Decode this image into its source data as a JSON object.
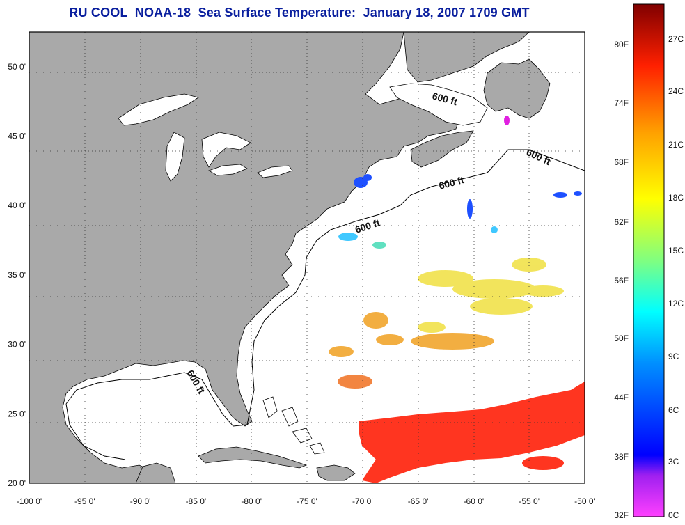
{
  "title": "RU COOL  NOAA-18  Sea Surface Temperature:  January 18, 2007 1709 GMT",
  "map": {
    "lon_range": [
      -100,
      -50
    ],
    "lat_range": [
      20,
      52.5
    ],
    "lon_ticks": [
      -100,
      -95,
      -90,
      -85,
      -80,
      -75,
      -70,
      -65,
      -60,
      -55,
      -50
    ],
    "lat_ticks": [
      20,
      25,
      30,
      35,
      40,
      45,
      50
    ],
    "lon_tick_labels": [
      "-100 0'",
      "-95 0'",
      "-90 0'",
      "-85 0'",
      "-80 0'",
      "-75 0'",
      "-70 0'",
      "-65 0'",
      "-60 0'",
      "-55 0'",
      "-50 0'"
    ],
    "lat_tick_labels": [
      "20 0'",
      "25 0'",
      "30 0'",
      "35 0'",
      "40 0'",
      "45 0'",
      "50 0'"
    ],
    "grid": "dotted",
    "land_color": "#a9a9a9",
    "ocean_color": "#ffffff",
    "contour_labels": [
      "600 ft",
      "600 ft",
      "600 ft",
      "600 ft",
      "600 ft"
    ]
  },
  "colorbar": {
    "fahrenheit_labels": [
      "80F",
      "74F",
      "68F",
      "62F",
      "56F",
      "50F",
      "44F",
      "38F",
      "32F"
    ],
    "celsius_labels": [
      "27C",
      "24C",
      "21C",
      "18C",
      "15C",
      "12C",
      "9C",
      "6C",
      "3C",
      "0C"
    ],
    "gradient": [
      "#ff40ff",
      "#8020ff",
      "#0000ff",
      "#0080ff",
      "#00ffff",
      "#80ff80",
      "#ffff00",
      "#ff8000",
      "#ff0000",
      "#800000"
    ]
  },
  "sst_colors": {
    "cold": "#0050ff",
    "cyan": "#00c8ff",
    "yellow": "#f0e020",
    "orange": "#f0a000",
    "red": "#ff3020",
    "magenta": "#e020e0"
  }
}
